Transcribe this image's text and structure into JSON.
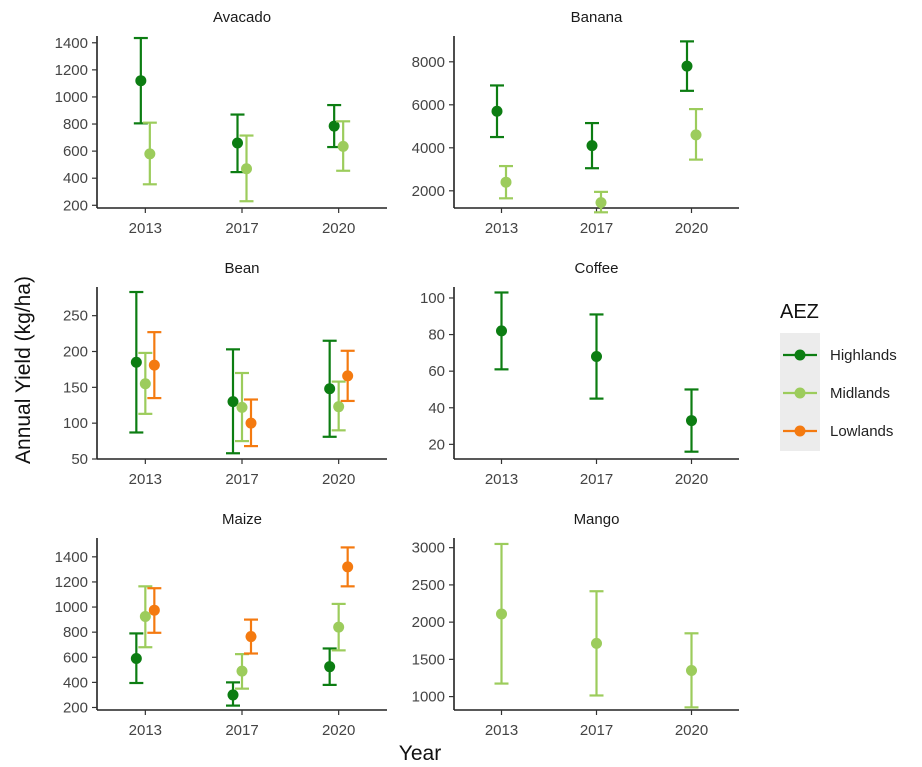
{
  "chart_data": {
    "type": "errorbar-facets",
    "xlabel": "Year",
    "ylabel": "Annual Yield (kg/ha)",
    "legend": {
      "title": "AEZ",
      "placement": "right",
      "entries": [
        {
          "name": "Highlands",
          "color": "#0c7d12"
        },
        {
          "name": "Midlands",
          "color": "#9ccc5c"
        },
        {
          "name": "Lowlands",
          "color": "#f47a10"
        }
      ]
    },
    "categories": [
      "2013",
      "2017",
      "2020"
    ],
    "facets": [
      {
        "title": "Avacado",
        "ylim": [
          180,
          1450
        ],
        "yticks": [
          200,
          400,
          600,
          800,
          1000,
          1200,
          1400
        ],
        "series": [
          {
            "name": "Highlands",
            "points": [
              {
                "x": "2013",
                "y": 1120,
                "lo": 805,
                "hi": 1435
              },
              {
                "x": "2017",
                "y": 660,
                "lo": 445,
                "hi": 870
              },
              {
                "x": "2020",
                "y": 785,
                "lo": 630,
                "hi": 940
              }
            ]
          },
          {
            "name": "Midlands",
            "points": [
              {
                "x": "2013",
                "y": 580,
                "lo": 355,
                "hi": 810
              },
              {
                "x": "2017",
                "y": 470,
                "lo": 230,
                "hi": 715
              },
              {
                "x": "2020",
                "y": 635,
                "lo": 455,
                "hi": 820
              }
            ]
          }
        ]
      },
      {
        "title": "Banana",
        "ylim": [
          1200,
          9200
        ],
        "yticks": [
          2000,
          4000,
          6000,
          8000
        ],
        "series": [
          {
            "name": "Highlands",
            "points": [
              {
                "x": "2013",
                "y": 5700,
                "lo": 4500,
                "hi": 6900
              },
              {
                "x": "2017",
                "y": 4100,
                "lo": 3050,
                "hi": 5150
              },
              {
                "x": "2020",
                "y": 7800,
                "lo": 6650,
                "hi": 8950
              }
            ]
          },
          {
            "name": "Midlands",
            "points": [
              {
                "x": "2013",
                "y": 2400,
                "lo": 1650,
                "hi": 3150
              },
              {
                "x": "2017",
                "y": 1450,
                "lo": 1000,
                "hi": 1950
              },
              {
                "x": "2020",
                "y": 4600,
                "lo": 3450,
                "hi": 5800
              }
            ]
          }
        ]
      },
      {
        "title": "Bean",
        "ylim": [
          50,
          290
        ],
        "yticks": [
          50,
          100,
          150,
          200,
          250
        ],
        "series": [
          {
            "name": "Highlands",
            "points": [
              {
                "x": "2013",
                "y": 185,
                "lo": 87,
                "hi": 283
              },
              {
                "x": "2017",
                "y": 130,
                "lo": 58,
                "hi": 203
              },
              {
                "x": "2020",
                "y": 148,
                "lo": 81,
                "hi": 215
              }
            ]
          },
          {
            "name": "Midlands",
            "points": [
              {
                "x": "2013",
                "y": 155,
                "lo": 113,
                "hi": 198
              },
              {
                "x": "2017",
                "y": 122,
                "lo": 75,
                "hi": 170
              },
              {
                "x": "2020",
                "y": 123,
                "lo": 90,
                "hi": 158
              }
            ]
          },
          {
            "name": "Lowlands",
            "points": [
              {
                "x": "2013",
                "y": 181,
                "lo": 135,
                "hi": 227
              },
              {
                "x": "2017",
                "y": 100,
                "lo": 68,
                "hi": 133
              },
              {
                "x": "2020",
                "y": 166,
                "lo": 131,
                "hi": 201
              }
            ]
          }
        ]
      },
      {
        "title": "Coffee",
        "ylim": [
          12,
          106
        ],
        "yticks": [
          20,
          40,
          60,
          80,
          100
        ],
        "series": [
          {
            "name": "Highlands",
            "points": [
              {
                "x": "2013",
                "y": 82,
                "lo": 61,
                "hi": 103
              },
              {
                "x": "2017",
                "y": 68,
                "lo": 45,
                "hi": 91
              },
              {
                "x": "2020",
                "y": 33,
                "lo": 16,
                "hi": 50
              }
            ]
          }
        ]
      },
      {
        "title": "Maize",
        "ylim": [
          180,
          1550
        ],
        "yticks": [
          200,
          400,
          600,
          800,
          1000,
          1200,
          1400
        ],
        "series": [
          {
            "name": "Highlands",
            "points": [
              {
                "x": "2013",
                "y": 590,
                "lo": 395,
                "hi": 790
              },
              {
                "x": "2017",
                "y": 300,
                "lo": 215,
                "hi": 400
              },
              {
                "x": "2020",
                "y": 525,
                "lo": 380,
                "hi": 670
              }
            ]
          },
          {
            "name": "Midlands",
            "points": [
              {
                "x": "2013",
                "y": 925,
                "lo": 680,
                "hi": 1165
              },
              {
                "x": "2017",
                "y": 490,
                "lo": 350,
                "hi": 625
              },
              {
                "x": "2020",
                "y": 840,
                "lo": 655,
                "hi": 1025
              }
            ]
          },
          {
            "name": "Lowlands",
            "points": [
              {
                "x": "2013",
                "y": 975,
                "lo": 795,
                "hi": 1150
              },
              {
                "x": "2017",
                "y": 765,
                "lo": 630,
                "hi": 900
              },
              {
                "x": "2020",
                "y": 1320,
                "lo": 1165,
                "hi": 1475
              }
            ]
          }
        ]
      },
      {
        "title": "Mango",
        "ylim": [
          820,
          3130
        ],
        "yticks": [
          1000,
          1500,
          2000,
          2500,
          3000
        ],
        "series": [
          {
            "name": "Midlands",
            "points": [
              {
                "x": "2013",
                "y": 2110,
                "lo": 1175,
                "hi": 3050
              },
              {
                "x": "2017",
                "y": 1715,
                "lo": 1015,
                "hi": 2415
              },
              {
                "x": "2020",
                "y": 1350,
                "lo": 855,
                "hi": 1850
              }
            ]
          }
        ]
      }
    ]
  }
}
